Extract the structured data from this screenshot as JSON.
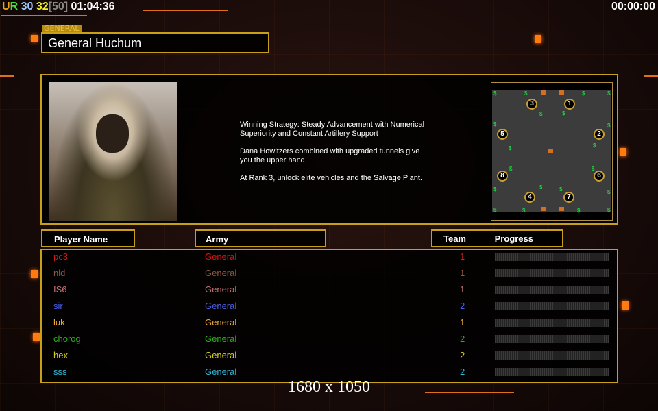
{
  "hud": {
    "ur_u": "U",
    "ur_r": "R",
    "power": "30",
    "supply": "32",
    "supply_max": "[50]",
    "time": "01:04:36"
  },
  "clock": "00:00:00",
  "header": {
    "tag": "GENERAL",
    "title": "General Huchum"
  },
  "description": "Winning Strategy: Steady Advancement with Numerical\n Superiority and Constant Artillery Support\n\nDana Howitzers combined with upgraded tunnels give\n you the upper hand.\n\nAt Rank 3, unlock elite vehicles and the Salvage Plant.",
  "minimap": {
    "slots": [
      "3",
      "1",
      "5",
      "2",
      "8",
      "6",
      "4",
      "7"
    ],
    "cash_icon": "$"
  },
  "columns": {
    "player": "Player Name",
    "army": "Army",
    "team": "Team",
    "progress": "Progress"
  },
  "players": [
    {
      "name": "pc3",
      "army": "General",
      "team": "1",
      "color": "#d01818"
    },
    {
      "name": "nld",
      "army": "General",
      "team": "1",
      "color": "#8a5a42"
    },
    {
      "name": "IS6",
      "army": "General",
      "team": "1",
      "color": "#c07272"
    },
    {
      "name": "sir",
      "army": "General",
      "team": "2",
      "color": "#4a5ee8"
    },
    {
      "name": "luk",
      "army": "General",
      "team": "1",
      "color": "#e8a838"
    },
    {
      "name": "chorog",
      "army": "General",
      "team": "2",
      "color": "#30b020"
    },
    {
      "name": "hex",
      "army": "General",
      "team": "2",
      "color": "#d8d020"
    },
    {
      "name": "sss",
      "army": "General",
      "team": "2",
      "color": "#30b8d8"
    }
  ],
  "resolution": "1680 x 1050"
}
